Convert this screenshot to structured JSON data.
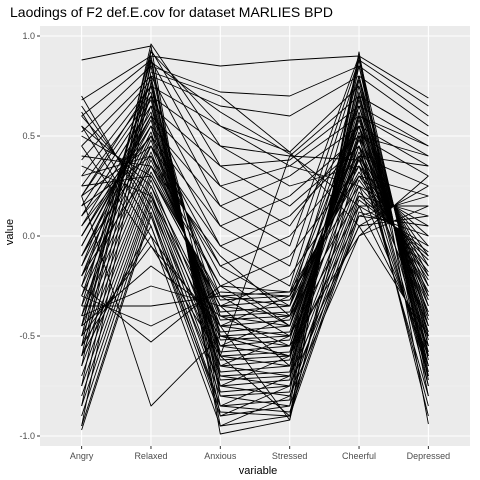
{
  "chart_data": {
    "type": "line",
    "title": "Laodings of F2 def.E.cov for dataset MARLIES BPD",
    "xlabel": "variable",
    "ylabel": "value",
    "categories": [
      "Angry",
      "Relaxed",
      "Anxious",
      "Stressed",
      "Cheerful",
      "Depressed"
    ],
    "ylim": [
      -1.05,
      1.05
    ],
    "yticks": [
      -1.0,
      -0.5,
      0.0,
      0.5,
      1.0
    ],
    "ytick_labels": [
      "-1.0",
      "-0.5",
      "0.0",
      "0.5",
      "1.0"
    ],
    "grid": true,
    "legend": "none",
    "colors": {
      "panel_bg": "#ebebeb",
      "grid_major": "#ffffff",
      "grid_minor": "#f3f3f3",
      "line": "#000000",
      "tick_text": "#4d4d4d",
      "tick_mark": "#333333"
    },
    "series": [
      {
        "values": [
          0.88,
          0.95,
          -0.99,
          -0.92,
          0.92,
          -0.94
        ]
      },
      {
        "values": [
          0.68,
          0.9,
          -0.95,
          -0.9,
          0.9,
          -0.8
        ]
      },
      {
        "values": [
          0.6,
          0.88,
          -0.9,
          -0.85,
          0.88,
          -0.75
        ]
      },
      {
        "values": [
          0.52,
          0.85,
          -0.85,
          -0.82,
          0.85,
          -0.72
        ]
      },
      {
        "values": [
          0.45,
          0.8,
          -0.8,
          -0.78,
          0.8,
          -0.7
        ]
      },
      {
        "values": [
          0.38,
          0.78,
          -0.78,
          -0.75,
          0.78,
          -0.68
        ]
      },
      {
        "values": [
          0.3,
          0.75,
          -0.75,
          -0.72,
          0.75,
          -0.65
        ]
      },
      {
        "values": [
          0.25,
          0.72,
          -0.72,
          -0.7,
          0.72,
          -0.62
        ]
      },
      {
        "values": [
          0.2,
          0.7,
          -0.7,
          -0.68,
          0.7,
          -0.6
        ]
      },
      {
        "values": [
          0.15,
          0.68,
          -0.68,
          -0.65,
          0.68,
          -0.58
        ]
      },
      {
        "values": [
          0.1,
          0.65,
          -0.65,
          -0.62,
          0.65,
          -0.55
        ]
      },
      {
        "values": [
          0.05,
          0.62,
          -0.62,
          -0.6,
          0.62,
          -0.52
        ]
      },
      {
        "values": [
          0.0,
          0.6,
          -0.6,
          -0.58,
          0.6,
          -0.5
        ]
      },
      {
        "values": [
          -0.05,
          0.58,
          -0.58,
          -0.55,
          0.58,
          -0.48
        ]
      },
      {
        "values": [
          -0.1,
          0.55,
          -0.55,
          -0.52,
          0.55,
          -0.45
        ]
      },
      {
        "values": [
          -0.15,
          0.52,
          -0.52,
          -0.5,
          0.52,
          -0.42
        ]
      },
      {
        "values": [
          -0.2,
          0.5,
          -0.5,
          -0.48,
          0.5,
          -0.4
        ]
      },
      {
        "values": [
          -0.25,
          0.48,
          -0.48,
          -0.45,
          0.48,
          -0.38
        ]
      },
      {
        "values": [
          -0.3,
          0.45,
          -0.45,
          -0.42,
          0.45,
          -0.35
        ]
      },
      {
        "values": [
          -0.35,
          0.42,
          -0.42,
          -0.4,
          0.42,
          -0.32
        ]
      },
      {
        "values": [
          -0.4,
          0.4,
          -0.4,
          -0.38,
          0.4,
          -0.3
        ]
      },
      {
        "values": [
          -0.45,
          0.38,
          -0.38,
          -0.35,
          0.38,
          -0.28
        ]
      },
      {
        "values": [
          -0.5,
          0.35,
          -0.35,
          -0.32,
          0.35,
          -0.25
        ]
      },
      {
        "values": [
          -0.55,
          0.32,
          -0.32,
          -0.3,
          0.32,
          -0.22
        ]
      },
      {
        "values": [
          -0.6,
          0.3,
          -0.3,
          -0.28,
          0.3,
          -0.2
        ]
      },
      {
        "values": [
          -0.65,
          0.28,
          -0.55,
          -0.6,
          0.28,
          -0.18
        ]
      },
      {
        "values": [
          -0.7,
          0.25,
          -0.6,
          -0.65,
          0.25,
          -0.15
        ]
      },
      {
        "values": [
          -0.75,
          0.22,
          -0.65,
          -0.7,
          0.22,
          -0.12
        ]
      },
      {
        "values": [
          -0.8,
          0.2,
          -0.7,
          -0.75,
          0.2,
          -0.1
        ]
      },
      {
        "values": [
          -0.85,
          0.18,
          -0.75,
          -0.8,
          0.18,
          -0.08
        ]
      },
      {
        "values": [
          -0.9,
          0.15,
          -0.8,
          -0.85,
          0.15,
          -0.05
        ]
      },
      {
        "values": [
          -0.95,
          0.12,
          -0.85,
          -0.88,
          0.12,
          0.0
        ]
      },
      {
        "values": [
          -0.97,
          0.1,
          -0.88,
          -0.9,
          0.1,
          0.05
        ]
      },
      {
        "values": [
          -0.6,
          0.05,
          -0.9,
          -0.75,
          0.05,
          0.1
        ]
      },
      {
        "values": [
          -0.55,
          0.0,
          -0.5,
          -0.55,
          0.0,
          0.15
        ]
      },
      {
        "values": [
          -0.5,
          -0.05,
          -0.45,
          -0.5,
          0.3,
          0.2
        ]
      },
      {
        "values": [
          -0.45,
          -0.15,
          -0.4,
          -0.45,
          0.4,
          0.25
        ]
      },
      {
        "values": [
          -0.4,
          -0.25,
          -0.35,
          -0.4,
          0.5,
          0.3
        ]
      },
      {
        "values": [
          -0.35,
          -0.35,
          -0.3,
          -0.35,
          0.55,
          0.35
        ]
      },
      {
        "values": [
          -0.3,
          -0.45,
          -0.28,
          -0.3,
          0.6,
          0.4
        ]
      },
      {
        "values": [
          -0.25,
          -0.53,
          -0.25,
          -0.28,
          0.65,
          0.45
        ]
      },
      {
        "values": [
          0.2,
          -0.85,
          -0.5,
          -0.6,
          0.7,
          0.5
        ]
      },
      {
        "values": [
          -0.6,
          0.9,
          0.85,
          0.88,
          0.9,
          -0.6
        ]
      },
      {
        "values": [
          -0.5,
          0.85,
          0.72,
          0.7,
          0.85,
          -0.55
        ]
      },
      {
        "values": [
          -0.45,
          0.8,
          0.65,
          0.6,
          0.8,
          -0.5
        ]
      },
      {
        "values": [
          -0.4,
          0.75,
          0.55,
          0.42,
          0.75,
          -0.45
        ]
      },
      {
        "values": [
          -0.3,
          0.7,
          0.45,
          0.4,
          0.7,
          -0.4
        ]
      },
      {
        "values": [
          -0.2,
          0.65,
          0.35,
          0.38,
          0.65,
          -0.35
        ]
      },
      {
        "values": [
          -0.1,
          0.6,
          0.25,
          0.35,
          0.6,
          -0.3
        ]
      },
      {
        "values": [
          0.0,
          0.55,
          0.15,
          0.3,
          0.55,
          -0.25
        ]
      },
      {
        "values": [
          0.1,
          0.5,
          0.05,
          0.2,
          0.5,
          -0.2
        ]
      },
      {
        "values": [
          0.2,
          0.45,
          -0.05,
          0.1,
          0.45,
          -0.15
        ]
      },
      {
        "values": [
          0.3,
          0.4,
          -0.15,
          0.0,
          0.4,
          -0.1
        ]
      },
      {
        "values": [
          0.4,
          0.35,
          -0.25,
          -0.1,
          0.35,
          -0.05
        ]
      },
      {
        "values": [
          0.5,
          0.3,
          -0.35,
          -0.2,
          0.3,
          0.0
        ]
      },
      {
        "values": [
          0.55,
          0.25,
          -0.45,
          -0.3,
          0.25,
          0.05
        ]
      },
      {
        "values": [
          0.6,
          0.2,
          -0.55,
          -0.4,
          0.2,
          0.1
        ]
      },
      {
        "values": [
          0.65,
          0.15,
          -0.65,
          -0.5,
          0.15,
          0.15
        ]
      },
      {
        "values": [
          0.7,
          0.1,
          -0.75,
          -0.6,
          0.1,
          0.2
        ]
      },
      {
        "values": [
          0.62,
          0.05,
          -0.85,
          -0.7,
          0.05,
          0.25
        ]
      },
      {
        "values": [
          0.55,
          0.0,
          -0.95,
          -0.8,
          0.0,
          0.3
        ]
      },
      {
        "values": [
          0.45,
          -0.05,
          -0.6,
          -0.9,
          0.4,
          0.35
        ]
      },
      {
        "values": [
          0.35,
          0.2,
          -0.45,
          -0.92,
          0.5,
          0.4
        ]
      },
      {
        "values": [
          0.25,
          0.3,
          -0.35,
          -0.65,
          0.6,
          0.45
        ]
      },
      {
        "values": [
          0.15,
          0.4,
          -0.25,
          -0.45,
          0.7,
          0.5
        ]
      },
      {
        "values": [
          0.05,
          0.5,
          -0.15,
          -0.35,
          0.8,
          0.55
        ]
      },
      {
        "values": [
          -0.05,
          0.6,
          -0.05,
          -0.25,
          0.85,
          0.6
        ]
      },
      {
        "values": [
          -0.15,
          0.7,
          0.05,
          -0.15,
          0.88,
          0.65
        ]
      },
      {
        "values": [
          -0.25,
          0.8,
          0.15,
          -0.05,
          0.9,
          0.69
        ]
      },
      {
        "values": [
          -0.35,
          0.88,
          0.25,
          0.05,
          0.55,
          -0.75
        ]
      },
      {
        "values": [
          -0.45,
          0.93,
          0.35,
          0.15,
          0.45,
          -0.7
        ]
      },
      {
        "values": [
          -0.55,
          0.96,
          0.45,
          0.25,
          0.35,
          -0.65
        ]
      },
      {
        "values": [
          -0.65,
          0.92,
          0.55,
          0.35,
          0.25,
          -0.6
        ]
      },
      {
        "values": [
          -0.75,
          0.87,
          0.62,
          0.41,
          0.15,
          -0.55
        ]
      },
      {
        "values": [
          -0.85,
          0.82,
          0.7,
          0.42,
          0.05,
          -0.5
        ]
      },
      {
        "values": [
          -0.95,
          0.77,
          -0.6,
          0.4,
          0.38,
          -0.45
        ]
      },
      {
        "values": [
          0.2,
          0.75,
          -0.5,
          -0.6,
          0.4,
          -0.8
        ]
      },
      {
        "values": [
          0.1,
          0.65,
          -0.4,
          -0.55,
          0.45,
          -0.85
        ]
      },
      {
        "values": [
          0.0,
          0.55,
          -0.3,
          -0.5,
          0.5,
          -0.9
        ]
      },
      {
        "values": [
          -0.1,
          0.45,
          -0.2,
          -0.45,
          0.55,
          -0.7
        ]
      },
      {
        "values": [
          -0.2,
          0.35,
          -0.1,
          -0.4,
          0.6,
          -0.65
        ]
      }
    ]
  }
}
